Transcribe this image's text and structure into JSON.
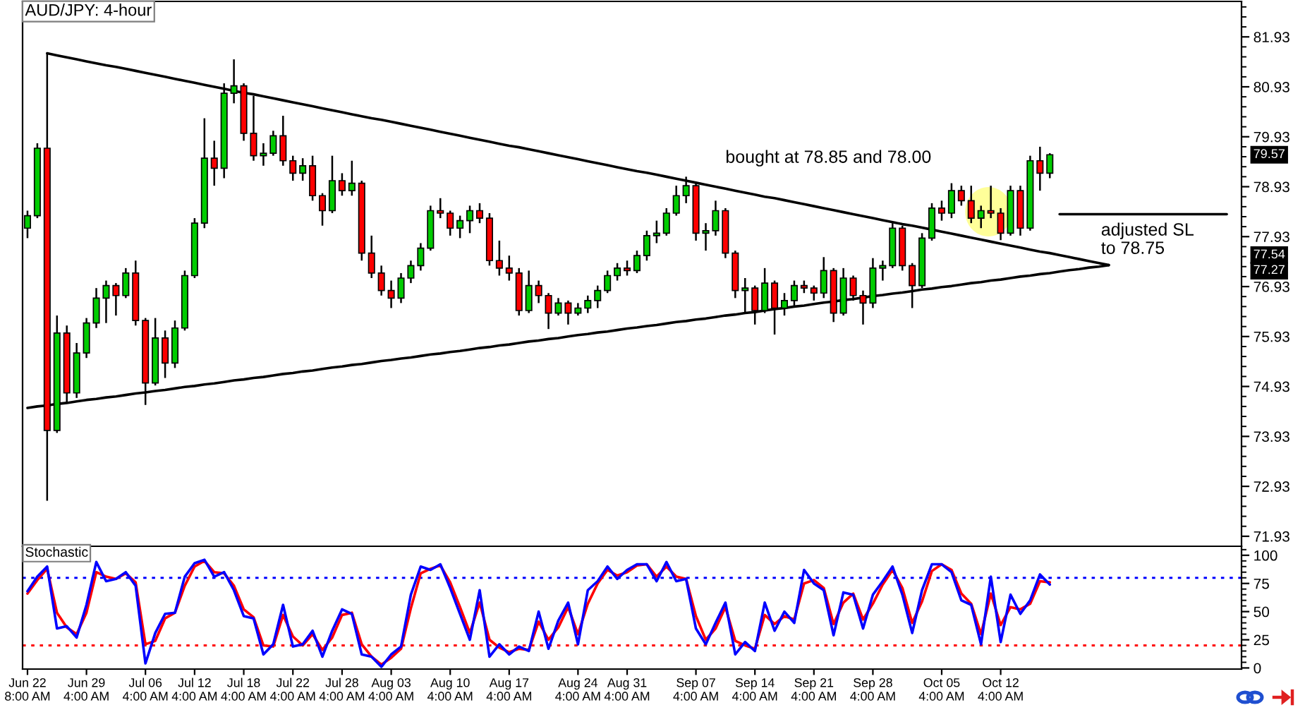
{
  "chart_data": [
    {
      "type": "candlestick",
      "title": "AUD/JPY: 4-hour",
      "ohlc": [
        [
          78.1,
          78.45,
          77.9,
          78.35
        ],
        [
          78.35,
          79.8,
          78.3,
          79.7
        ],
        [
          79.7,
          81.59,
          72.64,
          74.05
        ],
        [
          74.05,
          76.35,
          74.0,
          76.0
        ],
        [
          76.0,
          76.15,
          74.6,
          74.8
        ],
        [
          74.8,
          75.8,
          74.7,
          75.6
        ],
        [
          75.6,
          76.3,
          75.5,
          76.2
        ],
        [
          76.2,
          76.9,
          76.1,
          76.7
        ],
        [
          76.7,
          77.05,
          76.2,
          76.95
        ],
        [
          76.95,
          77.0,
          76.35,
          76.75
        ],
        [
          76.75,
          77.3,
          76.7,
          77.2
        ],
        [
          77.2,
          77.45,
          76.15,
          76.25
        ],
        [
          76.25,
          76.3,
          74.56,
          75.0
        ],
        [
          75.0,
          76.3,
          74.95,
          75.9
        ],
        [
          75.9,
          76.05,
          75.1,
          75.4
        ],
        [
          75.4,
          76.25,
          75.3,
          76.1
        ],
        [
          76.1,
          77.25,
          76.05,
          77.15
        ],
        [
          77.15,
          78.3,
          77.1,
          78.2
        ],
        [
          78.2,
          80.3,
          78.1,
          79.5
        ],
        [
          79.5,
          79.85,
          78.95,
          79.3
        ],
        [
          79.3,
          81.0,
          79.1,
          80.8
        ],
        [
          80.8,
          81.48,
          80.6,
          80.95
        ],
        [
          80.95,
          81.0,
          79.85,
          80.0
        ],
        [
          80.0,
          80.75,
          79.45,
          79.55
        ],
        [
          79.55,
          79.8,
          79.35,
          79.6
        ],
        [
          79.6,
          80.05,
          79.55,
          79.95
        ],
        [
          79.95,
          80.35,
          79.35,
          79.45
        ],
        [
          79.45,
          79.55,
          79.05,
          79.2
        ],
        [
          79.2,
          79.5,
          79.05,
          79.35
        ],
        [
          79.35,
          79.55,
          78.65,
          78.75
        ],
        [
          78.75,
          78.8,
          78.15,
          78.45
        ],
        [
          78.45,
          79.55,
          78.4,
          79.05
        ],
        [
          79.05,
          79.2,
          78.75,
          78.85
        ],
        [
          78.85,
          79.45,
          78.75,
          79.0
        ],
        [
          79.0,
          79.05,
          77.45,
          77.6
        ],
        [
          77.6,
          77.95,
          77.1,
          77.2
        ],
        [
          77.2,
          77.35,
          76.75,
          76.85
        ],
        [
          76.85,
          77.05,
          76.5,
          76.7
        ],
        [
          76.7,
          77.2,
          76.6,
          77.1
        ],
        [
          77.1,
          77.45,
          77.0,
          77.35
        ],
        [
          77.35,
          77.8,
          77.25,
          77.7
        ],
        [
          77.7,
          78.55,
          77.65,
          78.45
        ],
        [
          78.45,
          78.7,
          78.3,
          78.4
        ],
        [
          78.4,
          78.45,
          77.95,
          78.1
        ],
        [
          78.1,
          78.35,
          77.9,
          78.25
        ],
        [
          78.25,
          78.55,
          78.0,
          78.45
        ],
        [
          78.45,
          78.6,
          78.2,
          78.3
        ],
        [
          78.3,
          78.4,
          77.35,
          77.45
        ],
        [
          77.45,
          77.85,
          77.15,
          77.3
        ],
        [
          77.3,
          77.55,
          77.05,
          77.2
        ],
        [
          77.2,
          77.3,
          76.35,
          76.45
        ],
        [
          76.45,
          77.25,
          76.4,
          76.95
        ],
        [
          76.95,
          77.05,
          76.6,
          76.75
        ],
        [
          76.75,
          76.8,
          76.08,
          76.4
        ],
        [
          76.4,
          76.7,
          76.35,
          76.6
        ],
        [
          76.6,
          76.65,
          76.17,
          76.4
        ],
        [
          76.4,
          76.6,
          76.35,
          76.5
        ],
        [
          76.5,
          76.75,
          76.4,
          76.65
        ],
        [
          76.65,
          76.95,
          76.5,
          76.85
        ],
        [
          76.85,
          77.25,
          76.8,
          77.15
        ],
        [
          77.15,
          77.4,
          77.05,
          77.3
        ],
        [
          77.3,
          77.45,
          77.15,
          77.25
        ],
        [
          77.25,
          77.65,
          77.2,
          77.55
        ],
        [
          77.55,
          78.05,
          77.45,
          77.95
        ],
        [
          77.95,
          78.25,
          77.8,
          78.0
        ],
        [
          78.0,
          78.5,
          77.95,
          78.4
        ],
        [
          78.4,
          78.95,
          78.35,
          78.75
        ],
        [
          78.75,
          79.13,
          78.6,
          78.95
        ],
        [
          78.95,
          79.0,
          77.85,
          78.0
        ],
        [
          78.0,
          78.2,
          77.65,
          78.05
        ],
        [
          78.05,
          78.65,
          77.95,
          78.45
        ],
        [
          78.45,
          78.5,
          77.5,
          77.6
        ],
        [
          77.6,
          77.65,
          76.7,
          76.85
        ],
        [
          76.85,
          77.1,
          76.4,
          76.9
        ],
        [
          76.9,
          76.95,
          76.17,
          76.45
        ],
        [
          76.45,
          77.3,
          76.4,
          77.0
        ],
        [
          77.0,
          77.05,
          75.97,
          76.5
        ],
        [
          76.5,
          76.8,
          76.35,
          76.65
        ],
        [
          76.65,
          77.05,
          76.55,
          76.95
        ],
        [
          76.95,
          77.05,
          76.8,
          76.9
        ],
        [
          76.9,
          76.95,
          76.65,
          76.8
        ],
        [
          76.8,
          77.52,
          76.7,
          77.25
        ],
        [
          77.25,
          77.3,
          76.22,
          76.4
        ],
        [
          76.4,
          77.3,
          76.35,
          77.1
        ],
        [
          77.1,
          77.15,
          76.65,
          76.75
        ],
        [
          76.75,
          76.85,
          76.17,
          76.6
        ],
        [
          76.6,
          77.5,
          76.5,
          77.3
        ],
        [
          77.3,
          77.45,
          77.05,
          77.35
        ],
        [
          77.35,
          78.2,
          77.3,
          78.1
        ],
        [
          78.1,
          78.15,
          77.25,
          77.35
        ],
        [
          77.35,
          77.4,
          76.5,
          76.95
        ],
        [
          76.95,
          78.0,
          76.9,
          77.9
        ],
        [
          77.9,
          78.6,
          77.85,
          78.5
        ],
        [
          78.5,
          78.65,
          78.25,
          78.4
        ],
        [
          78.4,
          79.0,
          78.3,
          78.85
        ],
        [
          78.85,
          78.95,
          78.55,
          78.65
        ],
        [
          78.65,
          78.95,
          78.2,
          78.3
        ],
        [
          78.3,
          78.55,
          78.1,
          78.45
        ],
        [
          78.45,
          78.95,
          78.3,
          78.4
        ],
        [
          78.4,
          78.5,
          77.86,
          78.0
        ],
        [
          78.0,
          78.95,
          77.95,
          78.85
        ],
        [
          78.85,
          78.95,
          77.95,
          78.1
        ],
        [
          78.1,
          79.55,
          78.05,
          79.45
        ],
        [
          79.45,
          79.73,
          78.85,
          79.2
        ],
        [
          79.2,
          79.6,
          79.1,
          79.57
        ],
        null,
        null,
        null,
        null,
        null,
        null,
        null,
        null,
        null,
        null,
        null,
        null,
        null,
        null,
        null,
        null,
        null,
        null,
        null
      ],
      "colors": [
        "#00cc00",
        "#00cc00",
        "#ff0000",
        "#00cc00",
        "#ff0000",
        "#00cc00",
        "#00cc00",
        "#00cc00",
        "#00cc00",
        "#ff0000",
        "#00cc00",
        "#ff0000",
        "#ff0000",
        "#00cc00",
        "#ff0000",
        "#00cc00",
        "#00cc00",
        "#00cc00",
        "#00cc00",
        "#ff0000",
        "#00cc00",
        "#00cc00",
        "#ff0000",
        "#ff0000",
        "#00cc00",
        "#00cc00",
        "#ff0000",
        "#ff0000",
        "#00cc00",
        "#ff0000",
        "#ff0000",
        "#00cc00",
        "#ff0000",
        "#00cc00",
        "#ff0000",
        "#ff0000",
        "#ff0000",
        "#ff0000",
        "#00cc00",
        "#00cc00",
        "#00cc00",
        "#00cc00",
        "#ff0000",
        "#ff0000",
        "#00cc00",
        "#00cc00",
        "#ff0000",
        "#ff0000",
        "#ff0000",
        "#ff0000",
        "#ff0000",
        "#00cc00",
        "#ff0000",
        "#ff0000",
        "#00cc00",
        "#ff0000",
        "#00cc00",
        "#00cc00",
        "#00cc00",
        "#00cc00",
        "#00cc00",
        "#ff0000",
        "#00cc00",
        "#00cc00",
        "#00cc00",
        "#00cc00",
        "#00cc00",
        "#00cc00",
        "#ff0000",
        "#00cc00",
        "#00cc00",
        "#ff0000",
        "#ff0000",
        "#00cc00",
        "#ff0000",
        "#00cc00",
        "#ff0000",
        "#00cc00",
        "#00cc00",
        "#ff0000",
        "#ff0000",
        "#00cc00",
        "#ff0000",
        "#00cc00",
        "#ff0000",
        "#ff0000",
        "#00cc00",
        "#00cc00",
        "#00cc00",
        "#ff0000",
        "#ff0000",
        "#00cc00",
        "#00cc00",
        "#ff0000",
        "#00cc00",
        "#ff0000",
        "#ff0000",
        "#00cc00",
        "#ff0000",
        "#ff0000",
        "#00cc00",
        "#ff0000",
        "#00cc00",
        "#ff0000",
        "#00cc00",
        null,
        null,
        null,
        null,
        null,
        null,
        null,
        null,
        null,
        null,
        null,
        null,
        null,
        null,
        null,
        null,
        null,
        null,
        null
      ],
      "series": [
        {
          "type": "line",
          "color": "#000000",
          "values": [
            null,
            null,
            81.6,
            81.56,
            81.52,
            81.48,
            81.44,
            81.4,
            81.36,
            81.33,
            81.29,
            81.25,
            81.21,
            81.17,
            81.13,
            81.09,
            81.05,
            81.01,
            80.97,
            80.93,
            80.89,
            80.85,
            80.81,
            80.78,
            80.74,
            80.7,
            80.66,
            80.62,
            80.58,
            80.54,
            80.5,
            80.46,
            80.42,
            80.38,
            80.34,
            80.3,
            80.27,
            80.23,
            80.19,
            80.15,
            80.11,
            80.07,
            80.03,
            79.99,
            79.95,
            79.91,
            79.87,
            79.83,
            79.79,
            79.75,
            79.72,
            79.68,
            79.64,
            79.6,
            79.56,
            79.52,
            79.48,
            79.44,
            79.4,
            79.36,
            79.32,
            79.28,
            79.24,
            79.21,
            79.17,
            79.13,
            79.09,
            79.05,
            79.01,
            78.97,
            78.93,
            78.89,
            78.85,
            78.81,
            78.77,
            78.73,
            78.7,
            78.66,
            78.62,
            78.58,
            78.54,
            78.5,
            78.46,
            78.42,
            78.38,
            78.34,
            78.3,
            78.26,
            78.22,
            78.18,
            78.15,
            78.11,
            78.07,
            78.03,
            77.99,
            77.95,
            77.91,
            77.87,
            77.83,
            77.79,
            77.75,
            77.71,
            77.67,
            77.63,
            77.6,
            77.56,
            77.52,
            77.48,
            77.44,
            77.4,
            77.36,
            null,
            null,
            null,
            null,
            null,
            null,
            null,
            null,
            null,
            null,
            null,
            null,
            null
          ]
        },
        {
          "type": "line",
          "color": "#000000",
          "values": [
            74.5,
            74.53,
            74.55,
            74.58,
            74.6,
            74.63,
            74.66,
            74.68,
            74.71,
            74.73,
            74.76,
            74.79,
            74.81,
            74.84,
            74.86,
            74.89,
            74.92,
            74.94,
            74.97,
            74.99,
            75.02,
            75.05,
            75.07,
            75.1,
            75.12,
            75.15,
            75.18,
            75.2,
            75.23,
            75.25,
            75.28,
            75.31,
            75.33,
            75.36,
            75.38,
            75.41,
            75.44,
            75.46,
            75.49,
            75.51,
            75.54,
            75.57,
            75.59,
            75.62,
            75.64,
            75.67,
            75.7,
            75.72,
            75.75,
            75.77,
            75.8,
            75.83,
            75.85,
            75.88,
            75.9,
            75.93,
            75.96,
            75.98,
            76.01,
            76.03,
            76.06,
            76.09,
            76.11,
            76.14,
            76.16,
            76.19,
            76.22,
            76.24,
            76.27,
            76.29,
            76.32,
            76.35,
            76.37,
            76.4,
            76.42,
            76.45,
            76.48,
            76.5,
            76.53,
            76.55,
            76.58,
            76.61,
            76.63,
            76.66,
            76.68,
            76.71,
            76.74,
            76.76,
            76.79,
            76.81,
            76.84,
            76.87,
            76.89,
            76.92,
            76.94,
            76.97,
            77.0,
            77.02,
            77.05,
            77.07,
            77.1,
            77.13,
            77.15,
            77.18,
            77.2,
            77.23,
            77.26,
            77.28,
            77.31,
            77.33,
            77.36,
            null,
            null,
            null,
            null,
            null,
            null,
            null,
            null,
            null,
            null,
            null,
            null,
            null
          ]
        },
        {
          "type": "line",
          "color": "#000000",
          "values": [
            null,
            null,
            null,
            null,
            null,
            null,
            null,
            null,
            null,
            null,
            null,
            null,
            null,
            null,
            null,
            null,
            null,
            null,
            null,
            null,
            null,
            null,
            null,
            null,
            null,
            null,
            null,
            null,
            null,
            null,
            null,
            null,
            null,
            null,
            null,
            null,
            null,
            null,
            null,
            null,
            null,
            null,
            null,
            null,
            null,
            null,
            null,
            null,
            null,
            null,
            null,
            null,
            null,
            null,
            null,
            null,
            null,
            null,
            null,
            null,
            null,
            null,
            null,
            null,
            null,
            null,
            null,
            null,
            null,
            null,
            null,
            null,
            null,
            null,
            null,
            null,
            null,
            null,
            null,
            null,
            null,
            null,
            null,
            null,
            null,
            null,
            null,
            null,
            null,
            null,
            null,
            null,
            null,
            null,
            null,
            null,
            null,
            null,
            null,
            null,
            null,
            null,
            null,
            null,
            null,
            78.38,
            78.38,
            78.38,
            78.38,
            78.38,
            78.38,
            78.38,
            78.38,
            78.38,
            78.38,
            78.38,
            78.38,
            78.38,
            78.38,
            78.38,
            78.38,
            78.38,
            78.38,
            null
          ]
        }
      ],
      "annotations": [
        "bought at 78.85 and 78.00",
        "adjusted SL\nto 78.75",
        "79.57",
        "77.54",
        "77.27"
      ],
      "ylim": [
        71.73,
        82.64
      ],
      "yticks": [
        71.93,
        {
          "value": 72.13,
          "label": null
        },
        {
          "value": 72.33,
          "label": null
        },
        {
          "value": 72.53,
          "label": null
        },
        {
          "value": 72.73,
          "label": null
        },
        72.93,
        {
          "value": 73.13,
          "label": null
        },
        {
          "value": 73.33,
          "label": null
        },
        {
          "value": 73.53,
          "label": null
        },
        {
          "value": 73.73,
          "label": null
        },
        73.93,
        {
          "value": 74.13,
          "label": null
        },
        {
          "value": 74.33,
          "label": null
        },
        {
          "value": 74.53,
          "label": null
        },
        {
          "value": 74.73,
          "label": null
        },
        74.93,
        {
          "value": 75.13,
          "label": null
        },
        {
          "value": 75.33,
          "label": null
        },
        {
          "value": 75.53,
          "label": null
        },
        {
          "value": 75.73,
          "label": null
        },
        75.93,
        {
          "value": 76.13,
          "label": null
        },
        {
          "value": 76.33,
          "label": null
        },
        {
          "value": 76.53,
          "label": null
        },
        {
          "value": 76.73,
          "label": null
        },
        76.93,
        {
          "value": 77.13,
          "label": null
        },
        {
          "value": 77.33,
          "label": null
        },
        {
          "value": 77.53,
          "label": null
        },
        {
          "value": 77.73,
          "label": null
        },
        77.93,
        {
          "value": 78.13,
          "label": null
        },
        {
          "value": 78.33,
          "label": null
        },
        {
          "value": 78.53,
          "label": null
        },
        {
          "value": 78.73,
          "label": null
        },
        78.93,
        {
          "value": 79.13,
          "label": null
        },
        {
          "value": 79.33,
          "label": null
        },
        {
          "value": 79.53,
          "label": null
        },
        {
          "value": 79.73,
          "label": null
        },
        79.93,
        {
          "value": 80.13,
          "label": null
        },
        {
          "value": 80.33,
          "label": null
        },
        {
          "value": 80.53,
          "label": null
        },
        {
          "value": 80.73,
          "label": null
        },
        80.93,
        {
          "value": 81.13,
          "label": null
        },
        {
          "value": 81.33,
          "label": null
        },
        {
          "value": 81.53,
          "label": null
        },
        {
          "value": 81.73,
          "label": null
        },
        81.93,
        {
          "value": 82.13,
          "label": null
        },
        {
          "value": 82.33,
          "label": null
        },
        {
          "value": 82.53,
          "label": null
        }
      ],
      "tick_labels": "y"
    },
    {
      "type": "line",
      "title": "Stochastic",
      "categories": [
        "Jun 22\n8:00 AM",
        null,
        null,
        null,
        null,
        null,
        "Jun 29\n4:00 AM",
        null,
        null,
        null,
        null,
        null,
        "Jul 06\n4:00 AM",
        null,
        null,
        null,
        null,
        "Jul 12\n4:00 AM",
        null,
        null,
        null,
        null,
        "Jul 18\n4:00 AM",
        null,
        null,
        null,
        null,
        "Jul 22\n4:00 AM",
        null,
        null,
        null,
        null,
        "Jul 28\n4:00 AM",
        null,
        null,
        null,
        null,
        "Aug 03\n4:00 AM",
        null,
        null,
        null,
        null,
        null,
        "Aug 10\n4:00 AM",
        null,
        null,
        null,
        null,
        null,
        "Aug 17\n4:00 AM",
        null,
        null,
        null,
        null,
        null,
        null,
        "Aug 24\n4:00 AM",
        null,
        null,
        null,
        null,
        "Aug 31\n4:00 AM",
        null,
        null,
        null,
        null,
        null,
        null,
        "Sep 07\n4:00 AM",
        null,
        null,
        null,
        null,
        null,
        "Sep 14\n4:00 AM",
        null,
        null,
        null,
        null,
        null,
        "Sep 21\n4:00 AM",
        null,
        null,
        null,
        null,
        null,
        "Sep 28\n4:00 AM",
        null,
        null,
        null,
        null,
        null,
        null,
        "Oct 05\n4:00 AM",
        null,
        null,
        null,
        null,
        null,
        "Oct 12\n4:00 AM",
        null,
        null,
        null,
        null,
        null,
        null,
        null,
        null,
        null,
        null,
        null,
        null,
        null,
        null,
        null,
        null,
        null,
        null,
        null,
        null,
        null,
        null,
        null,
        null
      ],
      "series": [
        {
          "color": "#ff0000",
          "values": [
            66,
            78,
            88,
            49,
            36,
            30,
            49,
            85,
            81,
            79,
            84,
            76,
            21,
            24,
            44,
            49,
            73,
            90,
            95,
            85,
            84,
            73,
            52,
            45,
            20,
            19,
            47,
            28,
            20,
            30,
            16,
            27,
            47,
            49,
            21,
            10,
            3,
            9,
            17,
            53,
            84,
            88,
            91,
            76,
            54,
            31,
            58,
            25,
            18,
            14,
            17,
            16,
            41,
            25,
            36,
            54,
            30,
            57,
            75,
            87,
            82,
            85,
            91,
            92,
            81,
            90,
            81,
            79,
            46,
            25,
            35,
            54,
            24,
            20,
            17,
            47,
            39,
            46,
            43,
            75,
            78,
            71,
            39,
            58,
            66,
            43,
            57,
            74,
            87,
            71,
            40,
            59,
            86,
            92,
            87,
            66,
            57,
            30,
            66,
            38,
            54,
            52,
            57,
            77,
            76,
            null,
            null,
            null,
            null,
            null,
            null,
            null,
            null,
            null,
            null,
            null,
            null,
            null,
            null,
            null,
            null,
            null,
            null,
            null
          ]
        },
        {
          "color": "#0000ff",
          "values": [
            68,
            81,
            90,
            35,
            37,
            27,
            56,
            94,
            77,
            79,
            85,
            73,
            4,
            31,
            48,
            49,
            81,
            93,
            96,
            81,
            85,
            69,
            46,
            44,
            12,
            21,
            56,
            19,
            21,
            33,
            10,
            33,
            52,
            48,
            12,
            10,
            1,
            12,
            19,
            65,
            90,
            87,
            92,
            71,
            48,
            25,
            69,
            10,
            21,
            12,
            19,
            15,
            50,
            17,
            42,
            58,
            21,
            69,
            77,
            90,
            79,
            87,
            92,
            92,
            77,
            94,
            77,
            79,
            35,
            21,
            40,
            58,
            12,
            23,
            15,
            58,
            33,
            50,
            40,
            87,
            75,
            69,
            29,
            67,
            65,
            35,
            65,
            77,
            90,
            65,
            31,
            69,
            92,
            92,
            85,
            60,
            56,
            21,
            81,
            23,
            65,
            48,
            60,
            83,
            74,
            null,
            null,
            null,
            null,
            null,
            null,
            null,
            null,
            null,
            null,
            null,
            null,
            null,
            null,
            null,
            null,
            null,
            null,
            null
          ]
        }
      ],
      "ref_lines": [
        {
          "axis": "y",
          "value": 80,
          "color": "#0000ff",
          "line_style": "dotted"
        },
        {
          "axis": "y",
          "value": 20,
          "color": "#ff0000",
          "line_style": "dotted"
        }
      ],
      "ylim": [
        -1,
        108
      ],
      "yticks": [
        0,
        {
          "value": 5,
          "label": null
        },
        {
          "value": 10,
          "label": null
        },
        {
          "value": 15,
          "label": null
        },
        {
          "value": 20,
          "label": null
        },
        25,
        {
          "value": 30,
          "label": null
        },
        {
          "value": 35,
          "label": null
        },
        {
          "value": 40,
          "label": null
        },
        {
          "value": 45,
          "label": null
        },
        50,
        {
          "value": 55,
          "label": null
        },
        {
          "value": 60,
          "label": null
        },
        {
          "value": 65,
          "label": null
        },
        {
          "value": 70,
          "label": null
        },
        75,
        {
          "value": 80,
          "label": null
        },
        {
          "value": 85,
          "label": null
        },
        {
          "value": 90,
          "label": null
        },
        {
          "value": 95,
          "label": null
        },
        100,
        {
          "value": 105,
          "label": null
        }
      ]
    }
  ]
}
